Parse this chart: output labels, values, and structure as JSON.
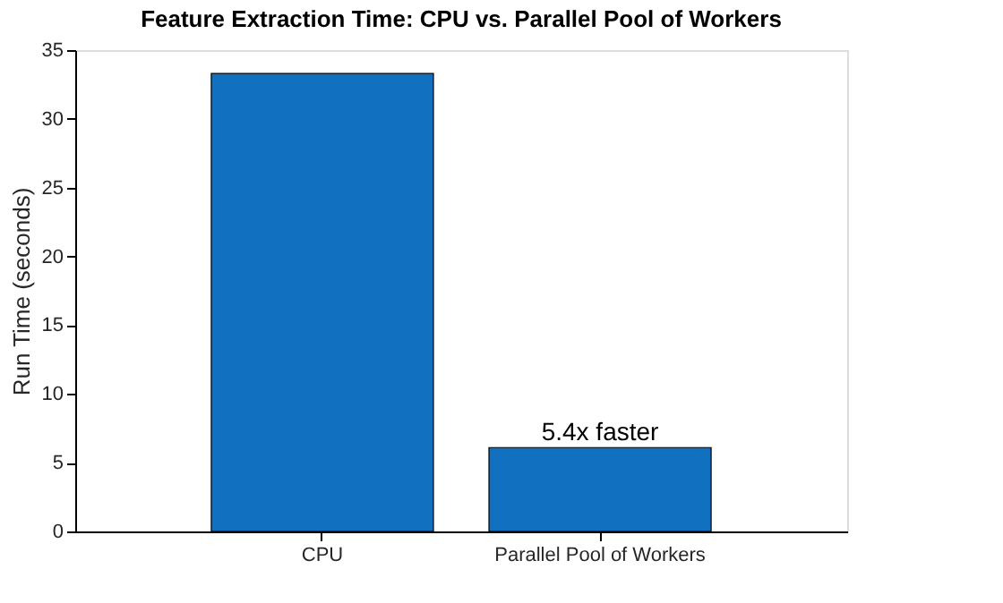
{
  "chart_data": {
    "type": "bar",
    "title": "Feature Extraction Time: CPU vs. Parallel Pool of Workers",
    "ylabel": "Run Time (seconds)",
    "categories": [
      "CPU",
      "Parallel Pool of Workers"
    ],
    "values": [
      33.3,
      6.1
    ],
    "color": "#1170c0",
    "ylim": [
      0,
      35
    ],
    "yticks": [
      0,
      5,
      10,
      15,
      20,
      25,
      30,
      35
    ],
    "grid": false,
    "annotations": [
      {
        "text": "5.4x faster",
        "x": "Parallel Pool of Workers",
        "y": 6.1
      }
    ]
  }
}
